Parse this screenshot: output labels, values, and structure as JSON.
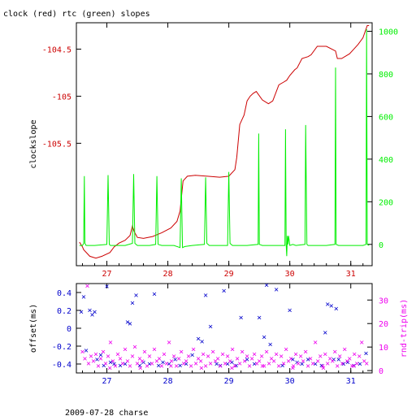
{
  "top_label": "clock (red) rtc (green) slopes",
  "bottom_label": "2009-07-28 charse",
  "colors": {
    "clock": "#cc0000",
    "rtc": "#00ee00",
    "offset": "#0000cc",
    "rtt": "#ee00ee",
    "axis": "#000000"
  },
  "chart_data": [
    {
      "type": "line",
      "ylabel": "clockslope",
      "y2label": "",
      "xlim": [
        26.5,
        31.35
      ],
      "ylim": [
        -106.8,
        -104.22
      ],
      "y2lim": [
        -100,
        1040
      ],
      "x_ticks": [
        "27",
        "28",
        "29",
        "30",
        "31"
      ],
      "y_ticks": [
        "-104.5",
        "-105",
        "-105.5"
      ],
      "y2_ticks": [
        "0",
        "200",
        "400",
        "600",
        "800",
        "1000"
      ],
      "series": [
        {
          "key": "clock",
          "axis": "left",
          "x": [
            26.55,
            26.6,
            26.62,
            26.72,
            26.82,
            26.92,
            27.05,
            27.12,
            27.2,
            27.3,
            27.38,
            27.42,
            27.45,
            27.5,
            27.6,
            27.75,
            27.9,
            28.05,
            28.15,
            28.2,
            28.25,
            28.32,
            28.45,
            28.65,
            28.85,
            29.0,
            29.1,
            29.13,
            29.18,
            29.25,
            29.3,
            29.35,
            29.4,
            29.45,
            29.55,
            29.65,
            29.72,
            29.82,
            29.9,
            29.95,
            30.0,
            30.08,
            30.12,
            30.2,
            30.3,
            30.35,
            30.45,
            30.6,
            30.75,
            30.78,
            30.85,
            30.98,
            31.05,
            31.12,
            31.2,
            31.27,
            31.3
          ],
          "y": [
            -106.55,
            -106.6,
            -106.63,
            -106.7,
            -106.72,
            -106.7,
            -106.66,
            -106.6,
            -106.56,
            -106.53,
            -106.48,
            -106.38,
            -106.44,
            -106.5,
            -106.51,
            -106.49,
            -106.45,
            -106.4,
            -106.33,
            -106.22,
            -105.9,
            -105.85,
            -105.84,
            -105.85,
            -105.86,
            -105.85,
            -105.78,
            -105.65,
            -105.3,
            -105.2,
            -105.05,
            -105.0,
            -104.97,
            -104.95,
            -105.04,
            -105.08,
            -105.05,
            -104.88,
            -104.85,
            -104.83,
            -104.78,
            -104.72,
            -104.7,
            -104.6,
            -104.58,
            -104.56,
            -104.47,
            -104.47,
            -104.52,
            -104.6,
            -104.6,
            -104.55,
            -104.5,
            -104.45,
            -104.38,
            -104.25,
            -104.25
          ]
        },
        {
          "key": "rtc",
          "axis": "right",
          "x": [
            26.55,
            26.6,
            26.62,
            26.63,
            26.64,
            26.66,
            26.7,
            26.8,
            27.0,
            27.02,
            27.04,
            27.06,
            27.1,
            27.3,
            27.42,
            27.44,
            27.46,
            27.5,
            27.7,
            27.8,
            27.82,
            27.84,
            27.9,
            28.1,
            28.2,
            28.22,
            28.24,
            28.28,
            28.4,
            28.6,
            28.62,
            28.64,
            28.68,
            28.8,
            28.98,
            29.0,
            29.02,
            29.06,
            29.3,
            29.48,
            29.49,
            29.5,
            29.55,
            29.7,
            29.92,
            29.93,
            29.94,
            29.95,
            29.96,
            29.97,
            29.98,
            30.0,
            30.05,
            30.1,
            30.25,
            30.26,
            30.28,
            30.3,
            30.6,
            30.74,
            30.75,
            30.76,
            30.8,
            31.2,
            31.25,
            31.26,
            31.27,
            31.3
          ],
          "y": [
            -5,
            -5,
            5,
            320,
            5,
            -5,
            -5,
            -5,
            0,
            325,
            0,
            -5,
            -5,
            -5,
            5,
            330,
            5,
            -5,
            -5,
            0,
            320,
            0,
            -5,
            -5,
            -15,
            310,
            -15,
            -10,
            -5,
            0,
            315,
            5,
            -5,
            -5,
            -5,
            340,
            5,
            -5,
            -5,
            0,
            520,
            0,
            -5,
            -5,
            -5,
            540,
            0,
            -55,
            40,
            0,
            40,
            -5,
            0,
            -5,
            0,
            560,
            0,
            -5,
            -5,
            0,
            830,
            0,
            -5,
            -5,
            0,
            1010,
            0,
            -5
          ]
        }
      ]
    },
    {
      "type": "scatter",
      "ylabel": "offset(ms)",
      "y2label": "rnd-trip(ms)",
      "xlim": [
        26.5,
        31.35
      ],
      "ylim": [
        -0.5,
        0.5
      ],
      "y2lim": [
        -1,
        37
      ],
      "x_ticks": [
        "27",
        "28",
        "29",
        "30",
        "31"
      ],
      "y_ticks": [
        "0.4",
        "0.2",
        "0",
        "-0.2",
        "-0.4"
      ],
      "y2_ticks": [
        "30",
        "20",
        "10",
        "0"
      ],
      "series": [
        {
          "key": "offset",
          "axis": "left",
          "marker": "x",
          "x": [
            26.58,
            26.62,
            26.66,
            26.72,
            26.76,
            26.8,
            26.84,
            26.9,
            26.95,
            27.0,
            27.06,
            27.12,
            27.22,
            27.3,
            27.34,
            27.38,
            27.42,
            27.48,
            27.54,
            27.6,
            27.7,
            27.78,
            27.85,
            27.92,
            28.02,
            28.12,
            28.2,
            28.3,
            28.4,
            28.5,
            28.56,
            28.62,
            28.7,
            28.8,
            28.86,
            28.92,
            28.98,
            29.05,
            29.12,
            29.2,
            29.3,
            29.42,
            29.5,
            29.58,
            29.62,
            29.68,
            29.78,
            29.88,
            30.0,
            30.05,
            30.12,
            30.2,
            30.3,
            30.42,
            30.52,
            30.58,
            30.62,
            30.68,
            30.72,
            30.76,
            30.8,
            30.88,
            30.95,
            31.05,
            31.15,
            31.25
          ],
          "y": [
            0.18,
            0.35,
            -0.25,
            0.2,
            0.15,
            0.18,
            -0.35,
            -0.3,
            -0.42,
            0.47,
            -0.38,
            -0.4,
            -0.42,
            -0.4,
            0.07,
            0.05,
            0.28,
            0.37,
            -0.42,
            -0.38,
            -0.4,
            0.38,
            -0.42,
            -0.38,
            -0.4,
            -0.35,
            -0.42,
            -0.4,
            -0.3,
            -0.12,
            -0.15,
            0.37,
            0.02,
            -0.4,
            -0.42,
            0.42,
            -0.4,
            -0.38,
            -0.42,
            0.12,
            -0.35,
            -0.4,
            0.12,
            -0.1,
            0.48,
            -0.18,
            0.43,
            -0.42,
            0.2,
            -0.35,
            -0.38,
            -0.4,
            -0.35,
            -0.4,
            -0.42,
            -0.05,
            0.27,
            0.25,
            -0.35,
            0.22,
            -0.35,
            -0.4,
            -0.38,
            -0.42,
            -0.4,
            -0.28
          ]
        },
        {
          "key": "rtt",
          "axis": "right",
          "marker": "x",
          "x": [
            26.6,
            26.64,
            26.68,
            26.7,
            26.74,
            26.78,
            26.82,
            26.86,
            26.9,
            26.94,
            26.98,
            27.02,
            27.06,
            27.1,
            27.14,
            27.18,
            27.22,
            27.26,
            27.3,
            27.34,
            27.38,
            27.42,
            27.46,
            27.5,
            27.54,
            27.58,
            27.62,
            27.66,
            27.7,
            27.74,
            27.78,
            27.82,
            27.86,
            27.9,
            27.94,
            27.98,
            28.02,
            28.06,
            28.1,
            28.14,
            28.18,
            28.22,
            28.26,
            28.3,
            28.34,
            28.38,
            28.42,
            28.46,
            28.5,
            28.54,
            28.58,
            28.62,
            28.66,
            28.7,
            28.74,
            28.78,
            28.82,
            28.86,
            28.9,
            28.94,
            28.98,
            29.02,
            29.06,
            29.1,
            29.14,
            29.18,
            29.22,
            29.26,
            29.3,
            29.34,
            29.38,
            29.42,
            29.46,
            29.5,
            29.54,
            29.58,
            29.62,
            29.66,
            29.7,
            29.74,
            29.78,
            29.82,
            29.86,
            29.9,
            29.94,
            29.98,
            30.02,
            30.06,
            30.1,
            30.14,
            30.18,
            30.22,
            30.26,
            30.3,
            30.34,
            30.38,
            30.42,
            30.46,
            30.5,
            30.54,
            30.58,
            30.62,
            30.66,
            30.7,
            30.74,
            30.78,
            30.82,
            30.86,
            30.9,
            30.94,
            30.98,
            31.02,
            31.06,
            31.1,
            31.14,
            31.18,
            31.22,
            31.26,
            27.05,
            27.55,
            28.05,
            28.55,
            29.05,
            29.55,
            30.05,
            30.55,
            31.05
          ],
          "y": [
            8,
            5,
            36,
            3,
            6,
            4,
            7,
            2,
            5,
            8,
            3,
            6,
            12,
            4,
            2,
            7,
            5,
            3,
            9,
            4,
            2,
            6,
            10,
            3,
            5,
            4,
            8,
            2,
            6,
            3,
            9,
            4,
            5,
            2,
            7,
            3,
            12,
            4,
            6,
            2,
            5,
            8,
            3,
            4,
            6,
            2,
            9,
            3,
            5,
            4,
            7,
            2,
            6,
            3,
            8,
            4,
            5,
            2,
            7,
            3,
            6,
            4,
            9,
            2,
            5,
            3,
            8,
            4,
            6,
            2,
            5,
            7,
            3,
            4,
            6,
            2,
            8,
            3,
            5,
            4,
            7,
            2,
            6,
            3,
            9,
            4,
            5,
            2,
            7,
            3,
            6,
            4,
            8,
            2,
            5,
            3,
            12,
            4,
            6,
            2,
            7,
            3,
            5,
            4,
            8,
            2,
            6,
            3,
            9,
            4,
            5,
            2,
            7,
            3,
            6,
            12,
            4,
            3,
            1,
            1,
            2,
            1,
            1,
            2,
            1,
            1,
            2
          ]
        }
      ]
    }
  ]
}
